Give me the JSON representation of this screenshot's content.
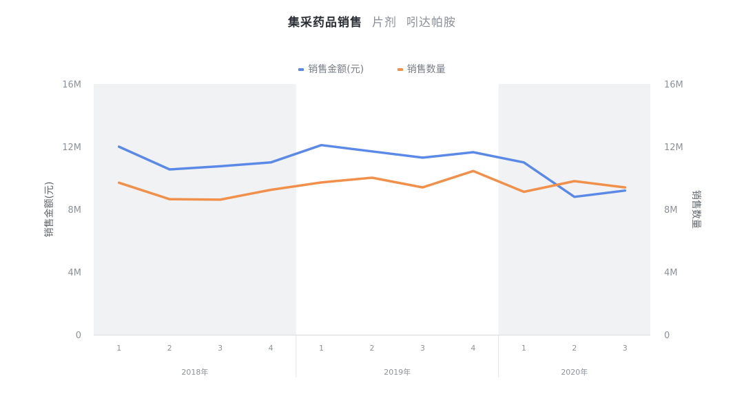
{
  "title": {
    "main": "集采药品销售",
    "parts": [
      "片剂",
      "吲达帕胺"
    ]
  },
  "chart_data": {
    "type": "line",
    "title": "集采药品销售 片剂 吲达帕胺",
    "categories": [
      "1",
      "2",
      "3",
      "4",
      "1",
      "2",
      "3",
      "4",
      "1",
      "2",
      "3"
    ],
    "groups": [
      {
        "label": "2018年",
        "count": 4
      },
      {
        "label": "2019年",
        "count": 4
      },
      {
        "label": "2020年",
        "count": 3
      }
    ],
    "series": [
      {
        "name": "销售金额(元)",
        "axis": "left",
        "color": "#5b8ae6",
        "values": [
          12.0,
          10.55,
          10.75,
          11.0,
          12.1,
          11.7,
          11.3,
          11.65,
          11.0,
          8.8,
          9.2
        ]
      },
      {
        "name": "销售数量",
        "axis": "right",
        "color": "#f0904a",
        "values": [
          9.7,
          8.65,
          8.62,
          9.25,
          9.72,
          10.02,
          9.4,
          10.45,
          9.12,
          9.8,
          9.4
        ]
      }
    ],
    "y_left": {
      "label": "销售金额(元)",
      "ticks": [
        "0",
        "4M",
        "8M",
        "12M",
        "16M"
      ],
      "range": [
        0,
        16
      ]
    },
    "y_right": {
      "label": "销售数量",
      "ticks": [
        "0",
        "4M",
        "8M",
        "12M",
        "16M"
      ],
      "range": [
        0,
        16
      ]
    },
    "value_unit": "M",
    "legend_position": "top-center",
    "grid": false,
    "shaded_groups": [
      "2018年",
      "2020年"
    ],
    "shade_color": "#f1f2f4"
  }
}
